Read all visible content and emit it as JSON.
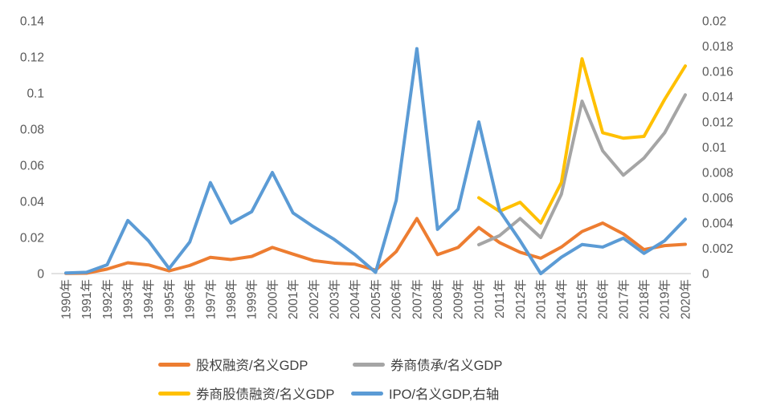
{
  "chart_data": {
    "type": "line",
    "title": "",
    "categories": [
      "1990年",
      "1991年",
      "1992年",
      "1993年",
      "1994年",
      "1995年",
      "1996年",
      "1997年",
      "1998年",
      "1999年",
      "2000年",
      "2001年",
      "2002年",
      "2003年",
      "2004年",
      "2005年",
      "2006年",
      "2007年",
      "2008年",
      "2009年",
      "2010年",
      "2011年",
      "2012年",
      "2013年",
      "2014年",
      "2015年",
      "2016年",
      "2017年",
      "2018年",
      "2019年",
      "2020年"
    ],
    "series": [
      {
        "name": "股权融资/名义GDP",
        "axis": "left",
        "color": "#ED7D31",
        "values": [
          0.0001,
          0.0002,
          0.0025,
          0.006,
          0.0048,
          0.0015,
          0.0045,
          0.009,
          0.0078,
          0.0095,
          0.0145,
          0.0108,
          0.0072,
          0.0058,
          0.0052,
          0.0019,
          0.0122,
          0.0305,
          0.0105,
          0.0145,
          0.0255,
          0.0172,
          0.0118,
          0.0085,
          0.0147,
          0.0233,
          0.028,
          0.022,
          0.0133,
          0.0155,
          0.0162
        ]
      },
      {
        "name": "券商债承/名义GDP",
        "axis": "left",
        "color": "#A5A5A5",
        "values": [
          null,
          null,
          null,
          null,
          null,
          null,
          null,
          null,
          null,
          null,
          null,
          null,
          null,
          null,
          null,
          null,
          null,
          null,
          null,
          null,
          0.016,
          0.021,
          0.0305,
          0.02,
          0.044,
          0.0955,
          0.068,
          0.0545,
          0.064,
          0.078,
          0.099
        ]
      },
      {
        "name": "券商股债融资/名义GDP",
        "axis": "left",
        "color": "#FFC000",
        "values": [
          null,
          null,
          null,
          null,
          null,
          null,
          null,
          null,
          null,
          null,
          null,
          null,
          null,
          null,
          null,
          null,
          null,
          null,
          null,
          null,
          0.042,
          0.0345,
          0.0395,
          0.028,
          0.0505,
          0.119,
          0.078,
          0.075,
          0.076,
          0.0965,
          0.115
        ]
      },
      {
        "name": "IPO/名义GDP,右轴",
        "axis": "right",
        "color": "#5B9BD5",
        "values": [
          5e-05,
          0.0001,
          0.0007,
          0.0042,
          0.0026,
          0.0004,
          0.0025,
          0.0072,
          0.004,
          0.0049,
          0.008,
          0.0048,
          0.0037,
          0.0027,
          0.0015,
          0.0001,
          0.0058,
          0.0178,
          0.0035,
          0.0051,
          0.012,
          0.005,
          0.0026,
          0.0,
          0.0013,
          0.0023,
          0.0021,
          0.0028,
          0.0016,
          0.0026,
          0.0043
        ]
      }
    ],
    "left_axis": {
      "min": 0,
      "max": 0.14,
      "step": 0.02,
      "ticks": [
        "0",
        "0.02",
        "0.04",
        "0.06",
        "0.08",
        "0.1",
        "0.12",
        "0.14"
      ]
    },
    "right_axis": {
      "min": 0,
      "max": 0.02,
      "step": 0.002,
      "ticks": [
        "0",
        "0.002",
        "0.004",
        "0.006",
        "0.008",
        "0.01",
        "0.012",
        "0.014",
        "0.016",
        "0.018",
        "0.02"
      ]
    },
    "grid": "off",
    "legend_position": "bottom"
  },
  "colors": {
    "background": "#FFFFFF",
    "axis_line": "#D9D9D9",
    "tick_text": "#595959",
    "legend_text": "#404040"
  }
}
